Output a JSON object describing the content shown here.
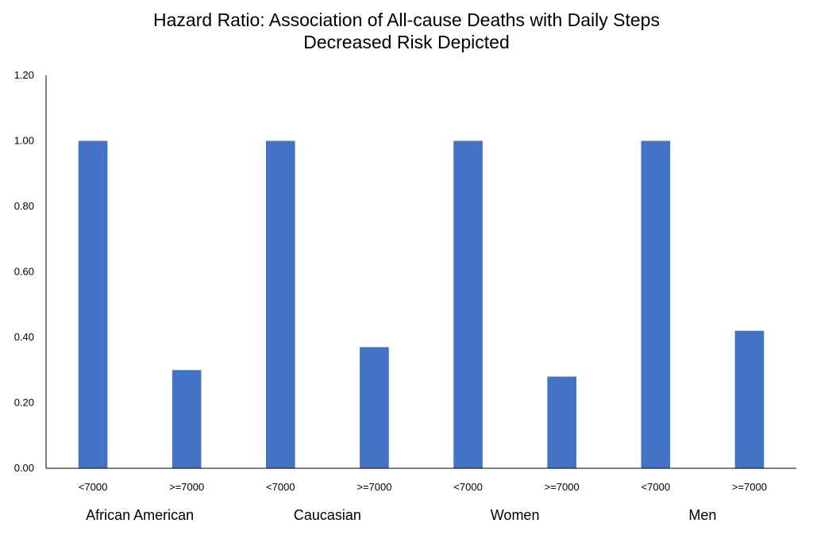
{
  "chart_data": {
    "type": "bar",
    "title_line1": "Hazard Ratio: Association of All-cause Deaths with Daily Steps",
    "title_line2": "Decreased Risk Depicted",
    "xlabel": "",
    "ylabel": "",
    "ylim": [
      0,
      1.2
    ],
    "yticks": [
      "0.00",
      "0.20",
      "0.40",
      "0.60",
      "0.80",
      "1.00",
      "1.20"
    ],
    "grid": false,
    "bar_color": "#4472C4",
    "groups": [
      {
        "label": "African American",
        "categories": [
          "<7000",
          ">=7000"
        ],
        "values": [
          1.0,
          0.3
        ]
      },
      {
        "label": "Caucasian",
        "categories": [
          "<7000",
          ">=7000"
        ],
        "values": [
          1.0,
          0.37
        ]
      },
      {
        "label": "Women",
        "categories": [
          "<7000",
          ">=7000"
        ],
        "values": [
          1.0,
          0.28
        ]
      },
      {
        "label": "Men",
        "categories": [
          "<7000",
          ">=7000"
        ],
        "values": [
          1.0,
          0.42
        ]
      }
    ]
  }
}
